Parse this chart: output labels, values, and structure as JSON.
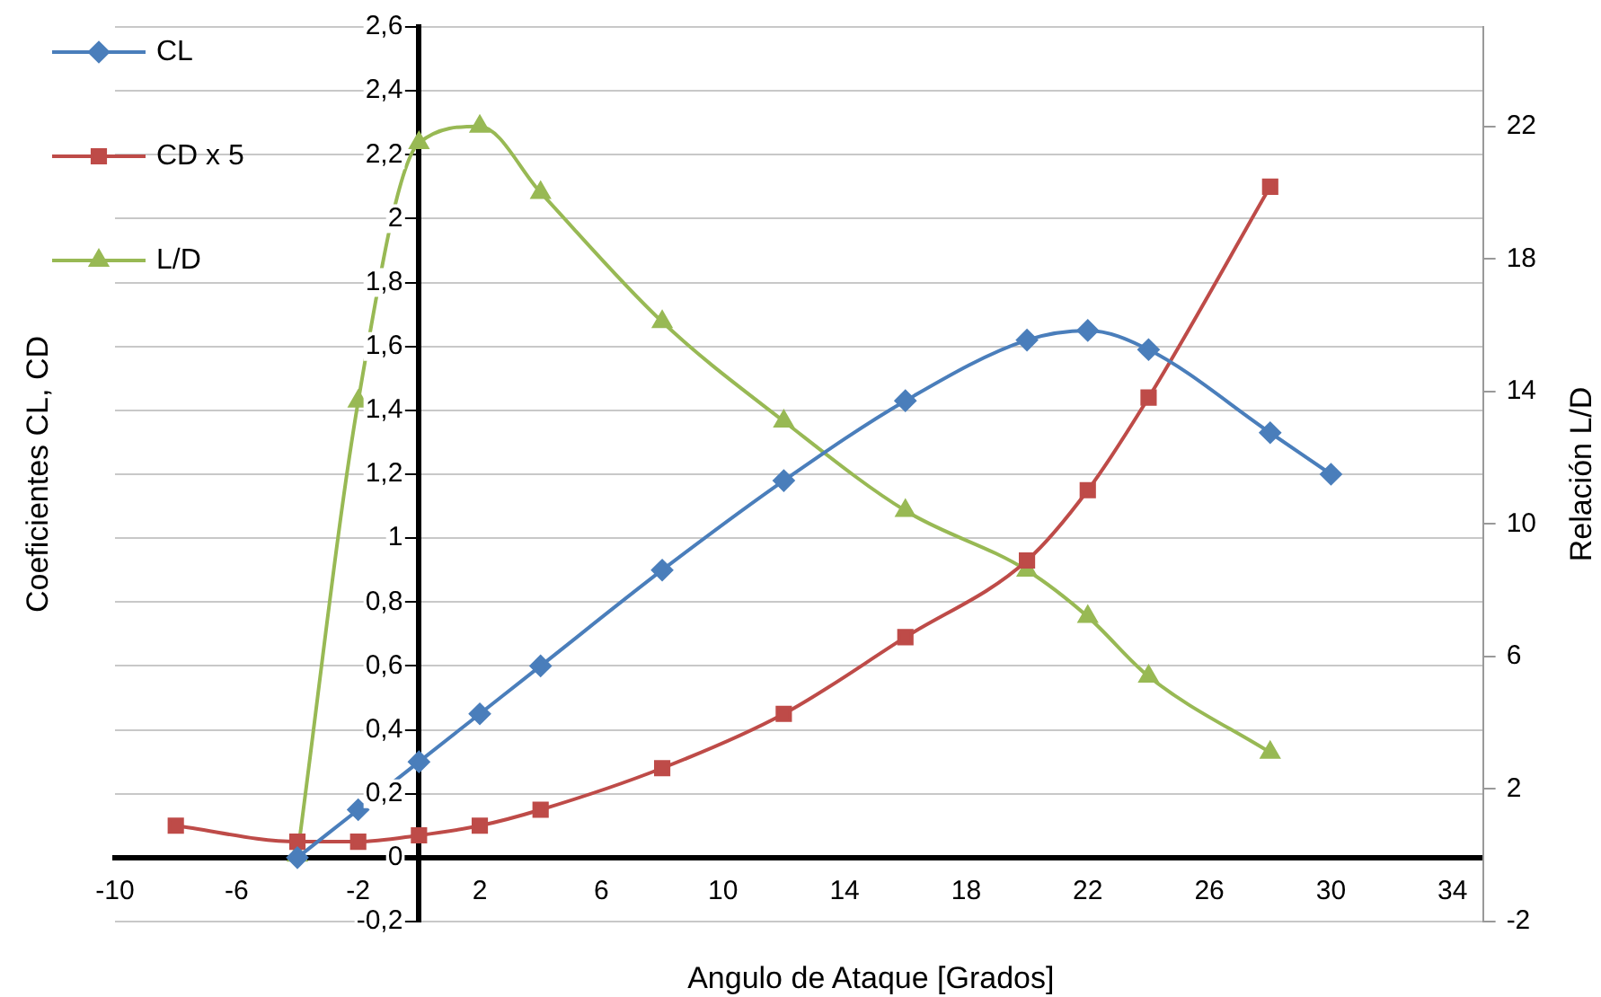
{
  "chart_data": {
    "type": "line",
    "xlabel": "Angulo de Ataque [Grados]",
    "ylabel": "Coeficientes CL, CD",
    "y2label": "Relación L/D",
    "x": [
      -8,
      -4,
      -2,
      0,
      2,
      4,
      8,
      12,
      16,
      20,
      22,
      24,
      28,
      30
    ],
    "series": [
      {
        "name": "CL",
        "color": "#4a7ebb",
        "marker": "diamond",
        "values": [
          null,
          0,
          0.15,
          0.3,
          0.45,
          0.6,
          0.9,
          1.18,
          1.43,
          1.62,
          1.65,
          1.59,
          1.33,
          1.2
        ]
      },
      {
        "name": "CD x 5",
        "color": "#be4b48",
        "marker": "square",
        "values": [
          0.1,
          0.05,
          0.05,
          0.07,
          0.1,
          0.15,
          0.28,
          0.45,
          0.69,
          0.93,
          1.15,
          1.44,
          2.1,
          null
        ]
      },
      {
        "name": "L/D",
        "color": "#98b954",
        "marker": "triangle",
        "axis": "y2",
        "values": [
          null,
          0,
          13.7,
          21.5,
          22,
          20,
          16.1,
          13.1,
          10.4,
          8.6,
          7.2,
          5.4,
          3.1,
          null
        ]
      }
    ],
    "xlim": [
      -10,
      35
    ],
    "xticks": [
      -10,
      -6,
      -2,
      2,
      6,
      10,
      14,
      18,
      22,
      26,
      30,
      34
    ],
    "ylim": [
      -0.2,
      2.6
    ],
    "yticks": [
      {
        "value": -0.2,
        "label": "-0,2"
      },
      0,
      {
        "value": 0.2,
        "label": "0,2"
      },
      {
        "value": 0.4,
        "label": "0,4"
      },
      {
        "value": 0.6,
        "label": "0,6"
      },
      {
        "value": 0.8,
        "label": "0,8"
      },
      1,
      {
        "value": 1.2,
        "label": "1,2"
      },
      {
        "value": 1.4,
        "label": "1,4"
      },
      {
        "value": 1.6,
        "label": "1,6"
      },
      {
        "value": 1.8,
        "label": "1,8"
      },
      2,
      {
        "value": 2.2,
        "label": "2,2"
      },
      {
        "value": 2.4,
        "label": "2,4"
      },
      {
        "value": 2.6,
        "label": "2,6"
      }
    ],
    "y2lim": [
      -2,
      25
    ],
    "y2ticks": [
      -2,
      2,
      6,
      10,
      14,
      18,
      22
    ],
    "grid": "y",
    "legend": "top left",
    "line_style": "solid"
  }
}
